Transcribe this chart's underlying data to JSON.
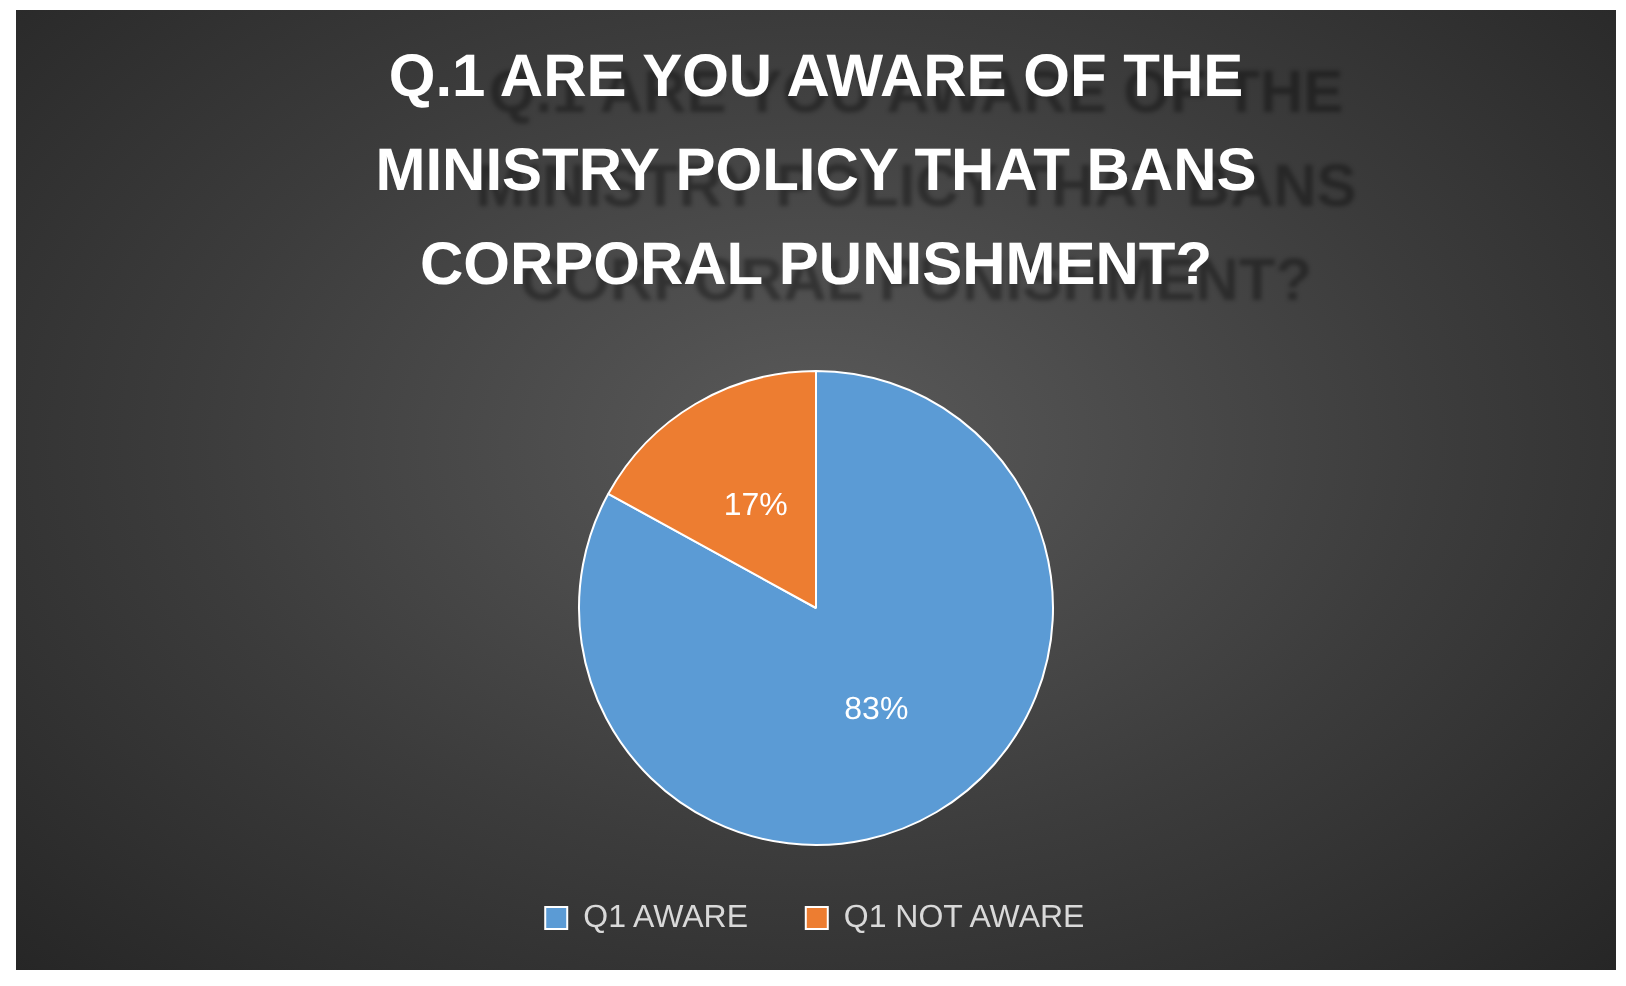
{
  "chart_data": {
    "type": "pie",
    "title": "Q.1 ARE YOU AWARE OF THE MINISTRY POLICY THAT BANS CORPORAL PUNISHMENT?",
    "categories": [
      "Q1 AWARE",
      "Q1 NOT AWARE"
    ],
    "values": [
      83,
      17
    ],
    "colors": [
      "#5b9bd5",
      "#ed7d31"
    ],
    "value_labels": [
      "83%",
      "17%"
    ],
    "legend": "bottom"
  }
}
